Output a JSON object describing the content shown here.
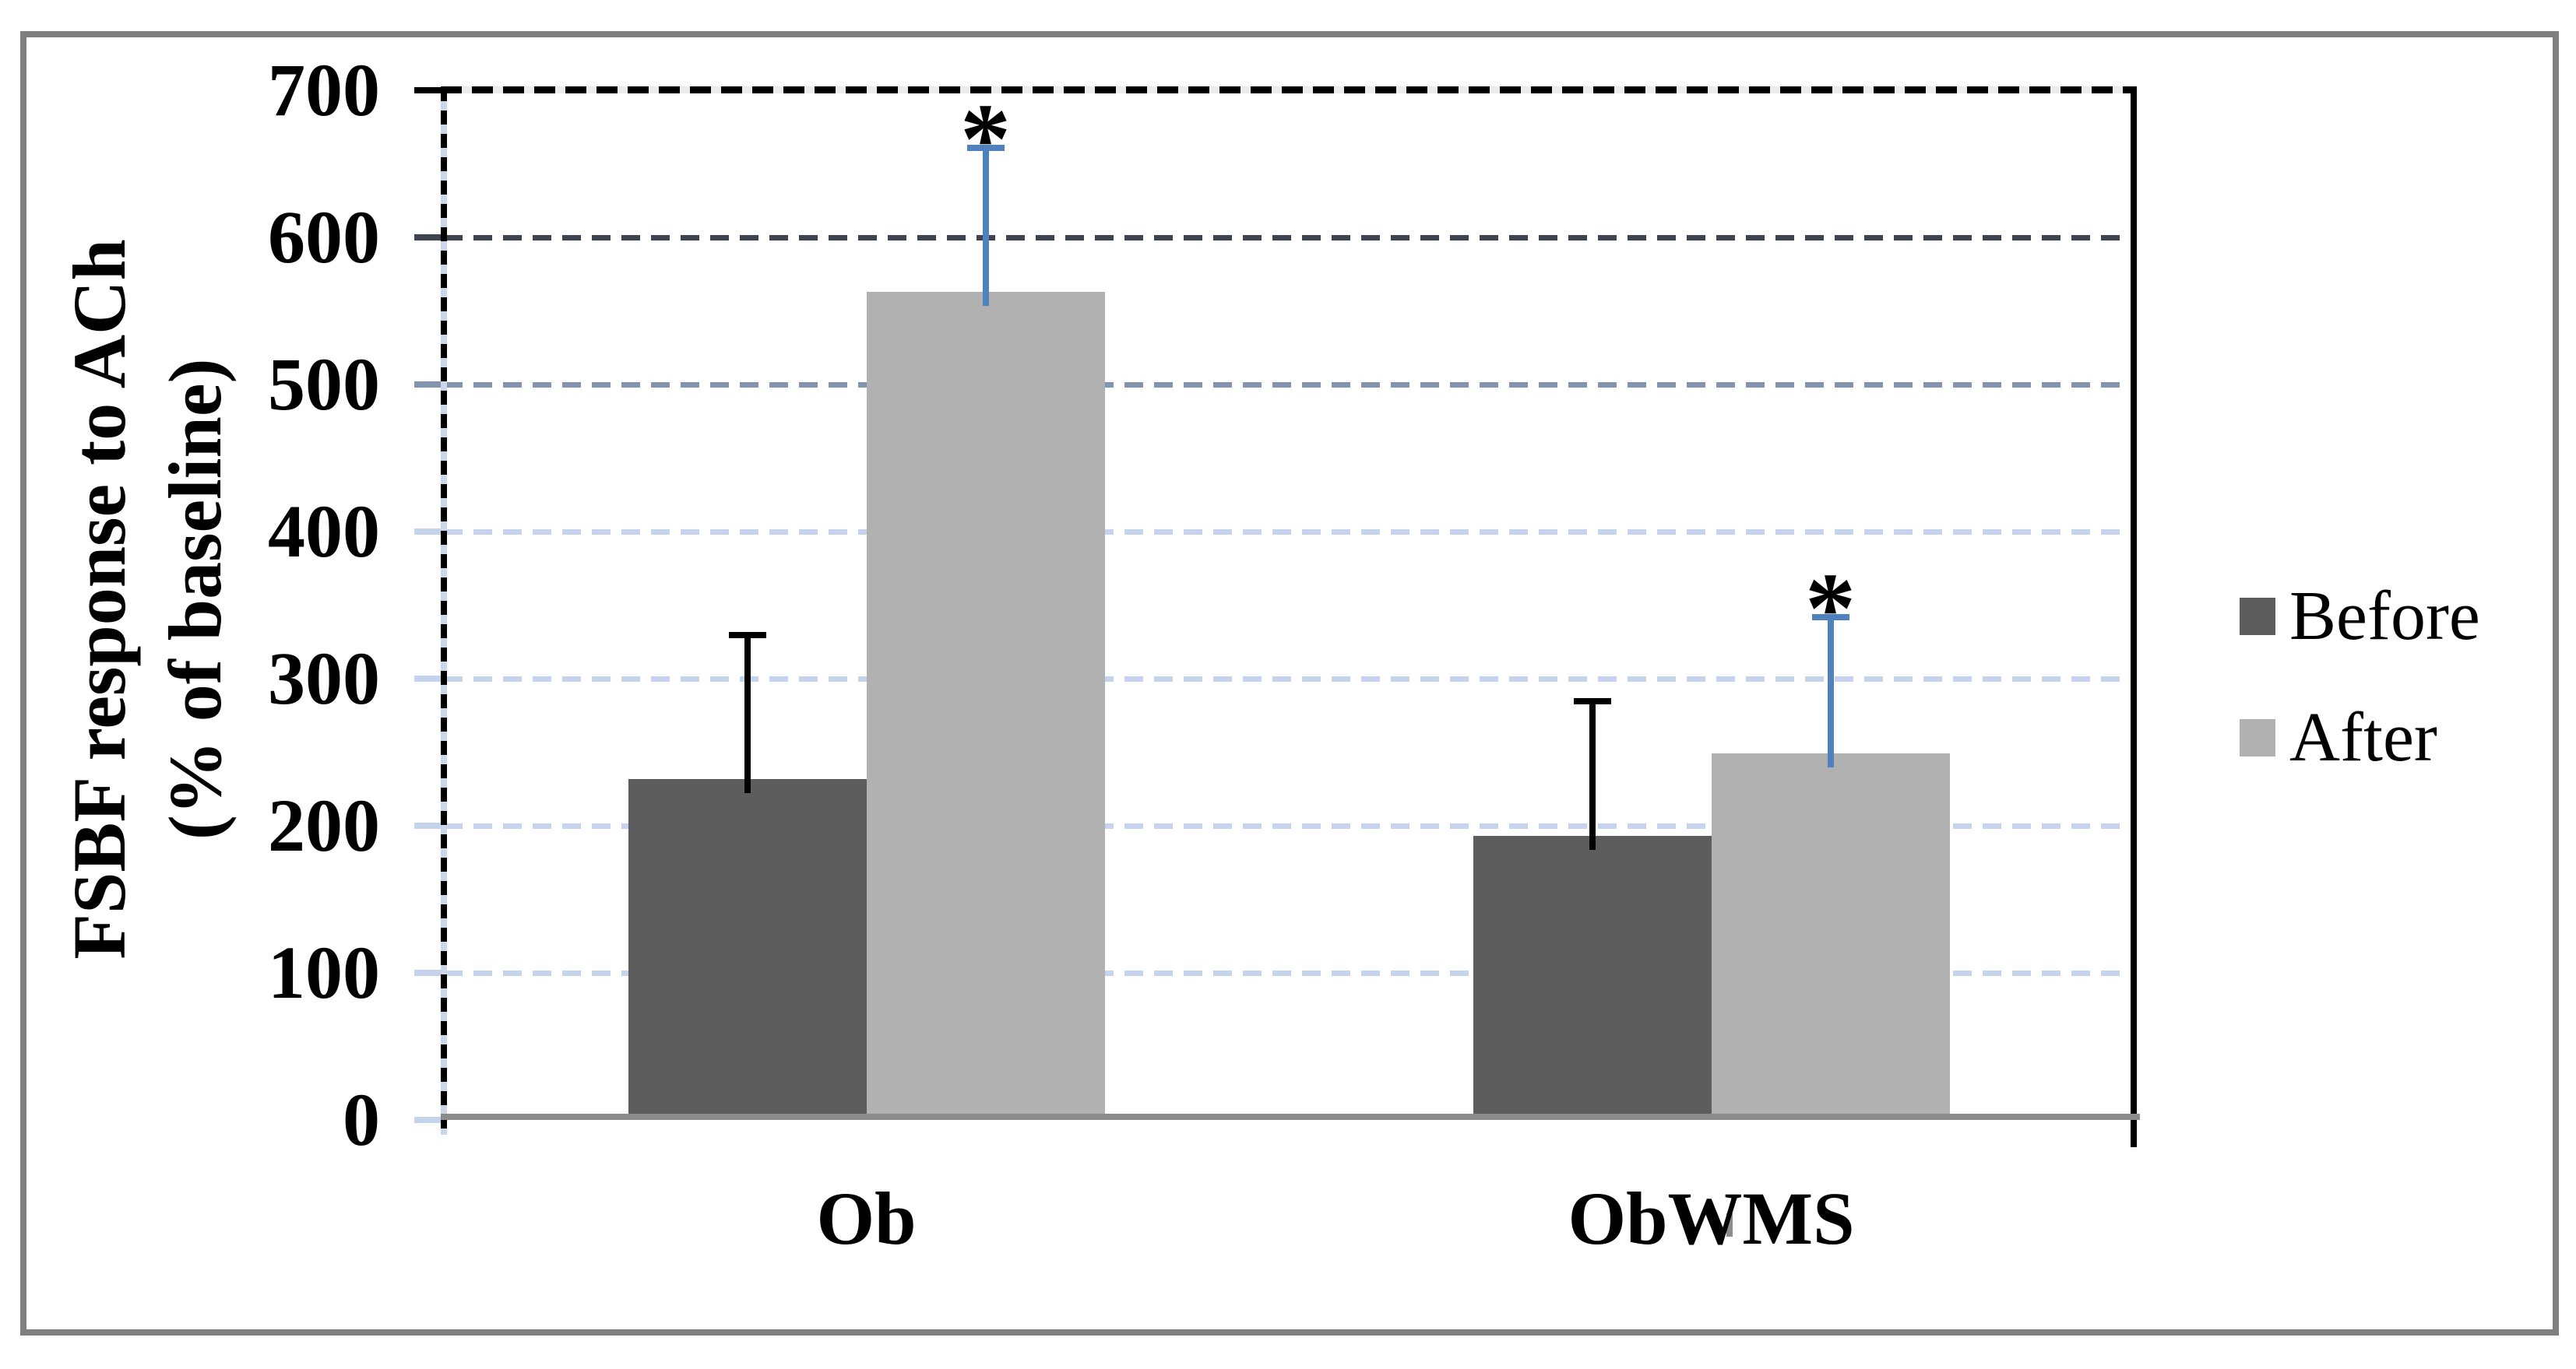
{
  "figure": {
    "background": "#ffffff",
    "border_color": "#7f7f7f"
  },
  "axes": {
    "left_axis_color": "#000000",
    "top_border_color": "#000000",
    "right_border_color": "#000000",
    "baseline_color": "#8c8c8c",
    "tick_label_color": "#000000"
  },
  "chart_data": {
    "type": "bar",
    "title": "",
    "ylabel_line1": "FSBF response to ACh",
    "ylabel_line2": "(% of baseline)",
    "xlabel": "",
    "categories": [
      "Ob",
      "ObWMS"
    ],
    "series": [
      {
        "name": "Before",
        "color": "#5d5d5d",
        "error_color": "#000000",
        "values": [
          232,
          193
        ],
        "errors_plus": [
          100,
          94
        ],
        "significance": [
          "",
          ""
        ]
      },
      {
        "name": "After",
        "color": "#b1b1b1",
        "error_color": "#4f81bd",
        "values": [
          563,
          249
        ],
        "errors_plus": [
          100,
          95
        ],
        "significance": [
          "*",
          "*"
        ]
      }
    ],
    "ylim": [
      0,
      700
    ],
    "ytick_step": 100,
    "ytick_labels": [
      "0",
      "100",
      "200",
      "300",
      "400",
      "500",
      "600",
      "700"
    ],
    "grid": "horizontal-dashed",
    "gridline_colors": {
      "default": "#c5d3ec",
      "level_500": "#8493ae",
      "level_600": "#3f4450",
      "level_700": "#000000"
    },
    "legend_position": "right",
    "significance_symbol": "*"
  }
}
